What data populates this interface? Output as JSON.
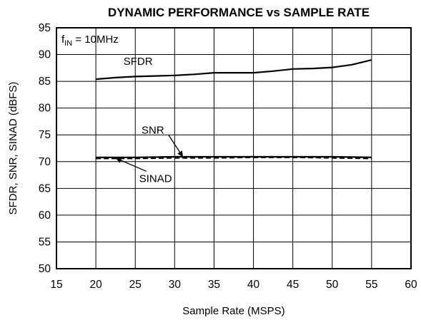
{
  "chart_data": {
    "type": "line",
    "title": "DYNAMIC PERFORMANCE vs SAMPLE RATE",
    "xlabel": "Sample Rate (MSPS)",
    "ylabel": "SFDR, SNR, SINAD (dBFS)",
    "xlim": [
      15,
      60
    ],
    "ylim": [
      50,
      95
    ],
    "xticks": [
      "15",
      "20",
      "25",
      "30",
      "35",
      "40",
      "45",
      "50",
      "55",
      "60"
    ],
    "yticks": [
      "50",
      "55",
      "60",
      "65",
      "70",
      "75",
      "80",
      "85",
      "90",
      "95"
    ],
    "grid": true,
    "condition": {
      "prefix": "f",
      "subscript": "IN",
      "suffix": " = 10MHz"
    },
    "series": [
      {
        "name": "SFDR",
        "style": "solid",
        "x": [
          20,
          22.5,
          25,
          27.5,
          30,
          32.5,
          35,
          37.5,
          40,
          42.5,
          45,
          47.5,
          50,
          52.5,
          55
        ],
        "y": [
          85.4,
          85.7,
          85.9,
          86.0,
          86.1,
          86.3,
          86.6,
          86.6,
          86.6,
          86.9,
          87.3,
          87.4,
          87.6,
          88.1,
          89.0
        ]
      },
      {
        "name": "SNR",
        "style": "solid",
        "x": [
          20,
          25,
          30,
          35,
          40,
          45,
          50,
          55
        ],
        "y": [
          70.8,
          70.8,
          70.9,
          70.9,
          70.9,
          70.9,
          70.9,
          70.8
        ]
      },
      {
        "name": "SINAD",
        "style": "dashed",
        "x": [
          20,
          25,
          30,
          35,
          40,
          45,
          50,
          55
        ],
        "y": [
          70.6,
          70.6,
          70.7,
          70.7,
          70.8,
          70.8,
          70.7,
          70.6
        ]
      }
    ],
    "annotations": [
      {
        "text": "SFDR",
        "x": 23.5,
        "y": 88.1
      },
      {
        "text": "SNR",
        "x": 25.8,
        "y": 75.2,
        "arrow_to": {
          "x": 31.0,
          "y": 71.0
        }
      },
      {
        "text": "SINAD",
        "x": 25.5,
        "y": 66.2,
        "arrow_to": {
          "x": 22.6,
          "y": 70.6
        }
      }
    ],
    "colors": {
      "lines": "#000000",
      "background": "#ffffff"
    }
  }
}
